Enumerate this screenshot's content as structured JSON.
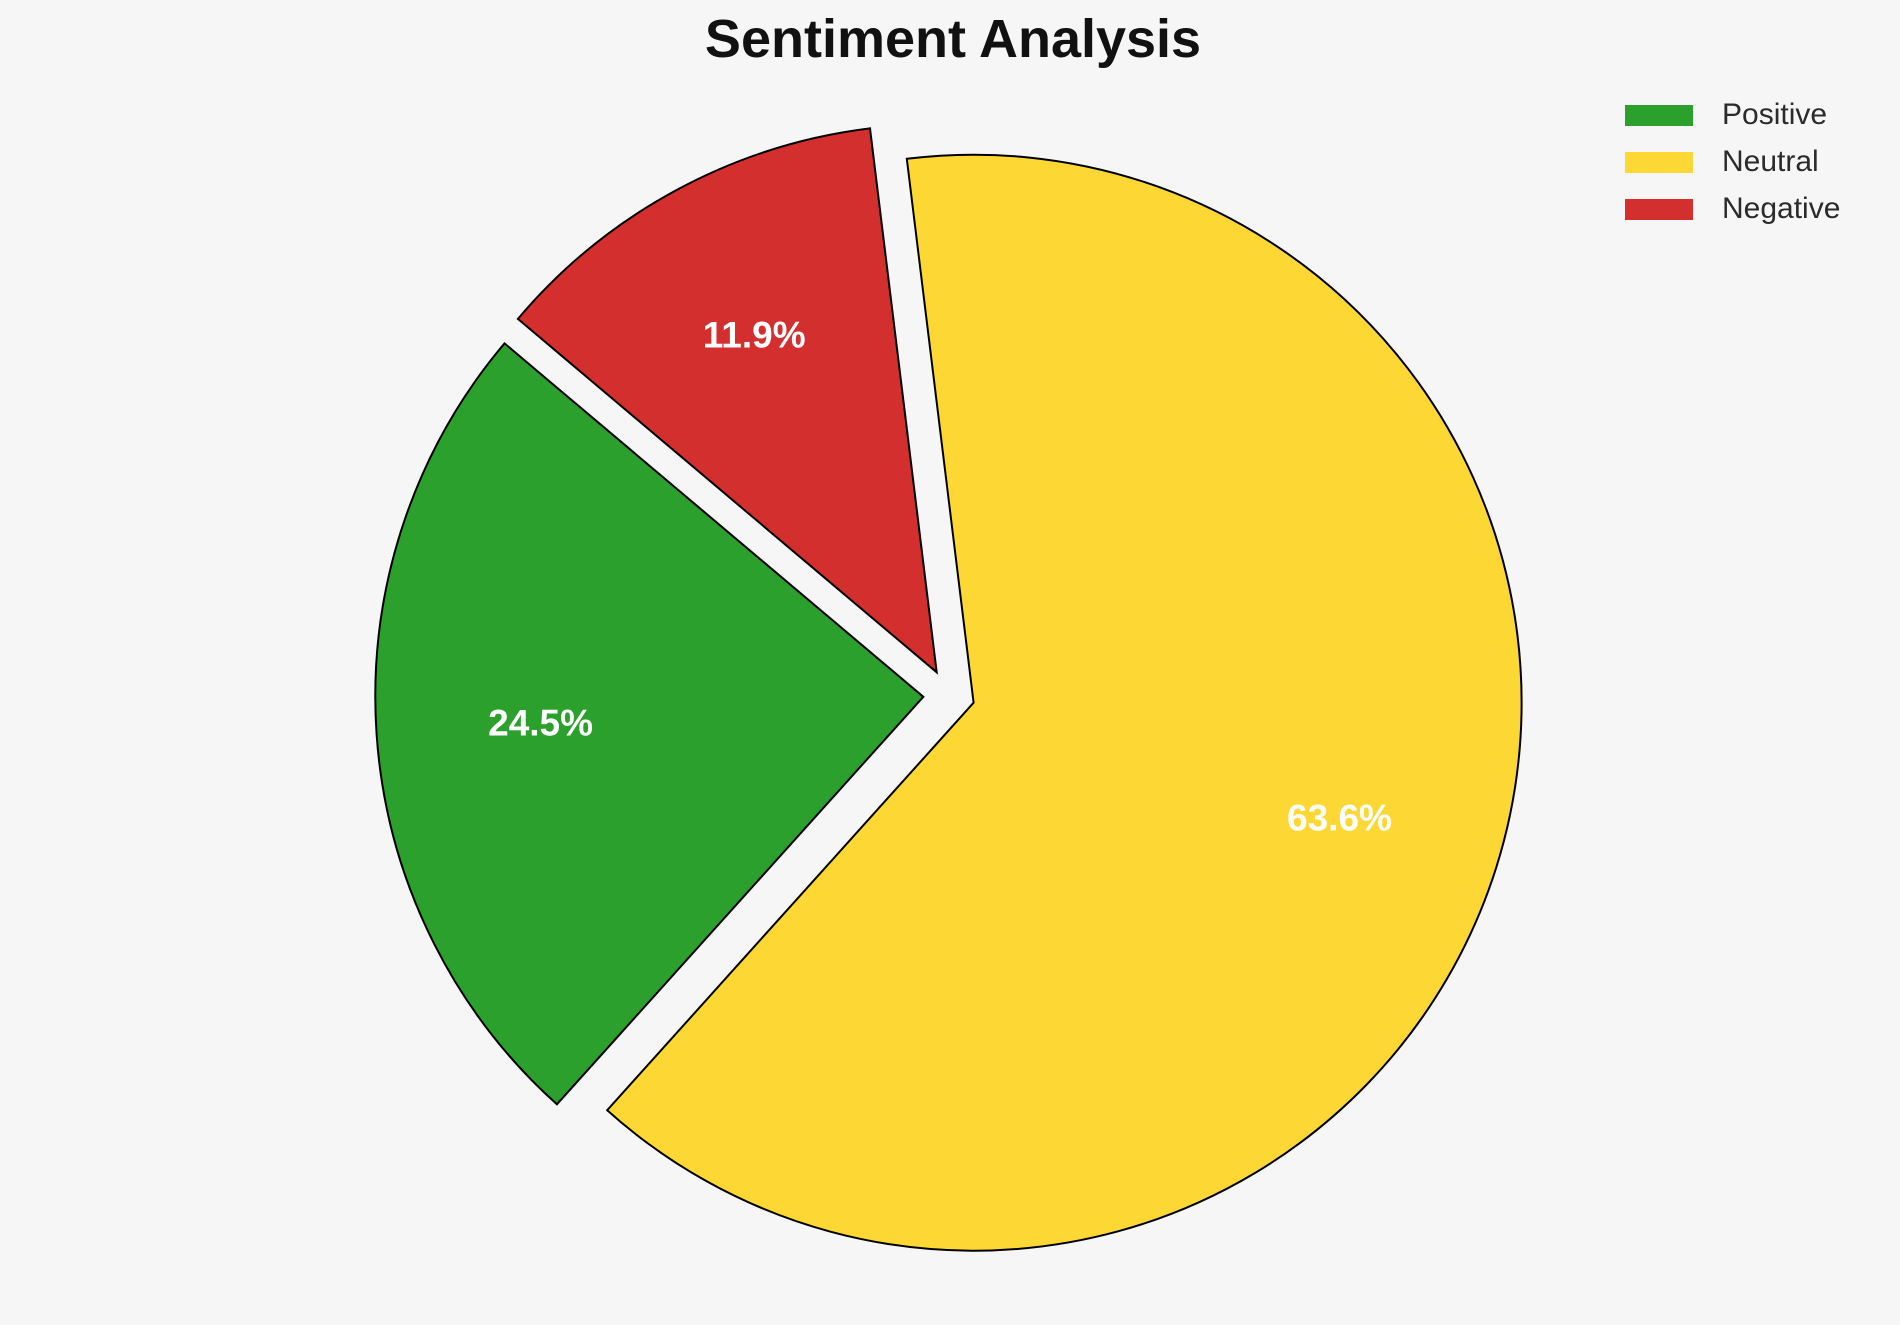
{
  "chart_data": {
    "type": "pie",
    "title": "Sentiment Analysis",
    "slices": [
      {
        "label": "Positive",
        "value": 24.5,
        "pct_label": "24.5%",
        "color": "#2ca02c"
      },
      {
        "label": "Neutral",
        "value": 63.6,
        "pct_label": "63.6%",
        "color": "#fdd835"
      },
      {
        "label": "Negative",
        "value": 11.9,
        "pct_label": "11.9%",
        "color": "#d32f2f"
      }
    ],
    "legend_position": "upper right",
    "legend_frame": "off",
    "start_angle_deg": 97,
    "direction": "counterclockwise",
    "order_from_start": [
      "Negative",
      "Positive",
      "Neutral"
    ],
    "explode_fraction": 0.047,
    "pct_label_distance": 0.7,
    "slice_label_color": "#ffffff",
    "edge_color": "#000000",
    "background": "#f6f6f6"
  }
}
